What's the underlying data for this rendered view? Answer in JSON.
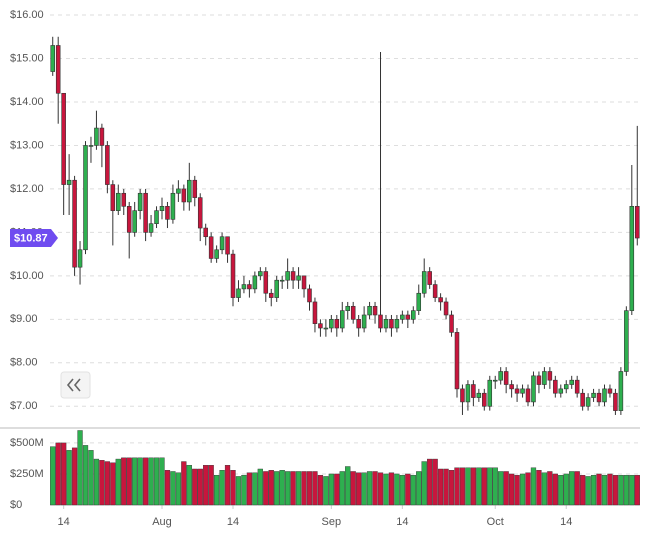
{
  "chart_data": {
    "type": "candlestick",
    "price_axis": {
      "ylim": [
        6.5,
        16.3
      ],
      "yticks": [
        {
          "value": 7,
          "label": "$7.00"
        },
        {
          "value": 8,
          "label": "$8.00"
        },
        {
          "value": 9,
          "label": "$9.00"
        },
        {
          "value": 10,
          "label": "$10.00"
        },
        {
          "value": 11,
          "label": "$11.00"
        },
        {
          "value": 12,
          "label": "$12.00"
        },
        {
          "value": 13,
          "label": "$13.00"
        },
        {
          "value": 14,
          "label": "$14.00"
        },
        {
          "value": 15,
          "label": "$15.00"
        },
        {
          "value": 16,
          "label": "$16.00"
        }
      ]
    },
    "volume_axis": {
      "ylim": [
        0,
        620
      ],
      "yticks": [
        {
          "value": 0,
          "label": "$0"
        },
        {
          "value": 250,
          "label": "$250M"
        },
        {
          "value": 500,
          "label": "$500M"
        }
      ]
    },
    "xlim": [
      -0.5,
      107.5
    ],
    "xticks": [
      {
        "value": 2,
        "label": "14"
      },
      {
        "value": 20,
        "label": "Aug"
      },
      {
        "value": 33,
        "label": "14"
      },
      {
        "value": 51,
        "label": "Sep"
      },
      {
        "value": 64,
        "label": "14"
      },
      {
        "value": 81,
        "label": "Oct"
      },
      {
        "value": 94,
        "label": "14"
      }
    ],
    "grid": true,
    "up_color": "#2eaf4f",
    "down_color": "#c8163d",
    "last_price": 10.87,
    "last_price_label": "$10.87",
    "last_price_color": "#6f4cf0",
    "open": [
      14.7,
      15.3,
      14.2,
      12.1,
      12.2,
      10.2,
      10.6,
      13.0,
      13.0,
      13.4,
      13.0,
      12.1,
      11.5,
      11.9,
      11.6,
      11.0,
      11.5,
      11.9,
      11.0,
      11.2,
      11.5,
      11.6,
      11.3,
      11.9,
      12.0,
      11.7,
      12.2,
      11.8,
      11.1,
      10.9,
      10.4,
      10.6,
      10.9,
      10.5,
      9.5,
      9.7,
      9.8,
      9.7,
      10.0,
      10.1,
      9.6,
      9.5,
      9.9,
      9.9,
      10.1,
      9.9,
      10.0,
      9.7,
      9.4,
      8.9,
      8.8,
      8.8,
      9.0,
      8.8,
      9.2,
      9.3,
      9.0,
      8.8,
      9.1,
      9.3,
      9.1,
      8.8,
      9.0,
      8.8,
      9.0,
      9.1,
      9.0,
      9.2,
      9.6,
      10.1,
      9.8,
      9.5,
      9.4,
      9.1,
      8.7,
      7.4,
      7.1,
      7.5,
      7.2,
      7.3,
      7.0,
      7.6,
      7.6,
      7.8,
      7.5,
      7.4,
      7.3,
      7.4,
      7.1,
      7.7,
      7.5,
      7.8,
      7.6,
      7.3,
      7.4,
      7.5,
      7.6,
      7.3,
      7.0,
      7.2,
      7.3,
      7.1,
      7.4,
      7.3,
      6.9,
      7.8,
      9.2,
      11.6
    ],
    "high": [
      15.5,
      15.5,
      14.2,
      12.8,
      12.3,
      10.8,
      13.1,
      13.2,
      13.8,
      13.5,
      13.1,
      12.2,
      12.1,
      12.0,
      11.7,
      11.7,
      12.0,
      12.0,
      11.4,
      11.6,
      11.8,
      11.7,
      12.1,
      12.2,
      12.1,
      12.6,
      12.3,
      11.9,
      11.2,
      11.0,
      10.7,
      11.0,
      10.9,
      10.6,
      9.9,
      10.0,
      9.9,
      10.1,
      10.2,
      10.2,
      9.7,
      10.0,
      10.0,
      10.4,
      10.2,
      10.2,
      10.0,
      9.8,
      9.5,
      9.0,
      9.0,
      9.1,
      9.1,
      9.4,
      9.4,
      9.4,
      9.1,
      9.3,
      9.4,
      9.4,
      15.15,
      9.1,
      9.1,
      9.1,
      9.2,
      9.2,
      9.3,
      9.8,
      10.4,
      10.2,
      9.9,
      9.6,
      9.5,
      9.2,
      8.8,
      7.5,
      7.6,
      7.6,
      7.4,
      7.4,
      7.7,
      7.7,
      7.9,
      7.9,
      7.6,
      7.5,
      7.5,
      7.5,
      7.8,
      7.8,
      7.9,
      7.9,
      7.7,
      7.5,
      7.6,
      7.7,
      7.7,
      7.4,
      7.3,
      7.4,
      7.4,
      7.5,
      7.5,
      7.4,
      7.9,
      9.3,
      12.55,
      13.45
    ],
    "low": [
      14.6,
      13.5,
      11.4,
      11.4,
      10.0,
      9.8,
      10.5,
      12.6,
      12.9,
      12.5,
      11.9,
      10.7,
      11.4,
      11.4,
      10.4,
      10.9,
      11.3,
      10.8,
      10.9,
      11.1,
      11.3,
      11.1,
      11.2,
      11.7,
      11.5,
      11.5,
      11.6,
      10.8,
      10.7,
      10.3,
      10.3,
      10.5,
      10.3,
      9.3,
      9.4,
      9.6,
      9.5,
      9.6,
      9.9,
      9.4,
      9.3,
      9.4,
      9.7,
      9.7,
      9.7,
      9.7,
      9.5,
      9.2,
      8.7,
      8.6,
      8.6,
      8.7,
      8.6,
      8.7,
      9.0,
      8.9,
      8.6,
      8.7,
      9.0,
      8.9,
      8.7,
      8.7,
      8.6,
      8.7,
      8.9,
      8.8,
      8.9,
      9.1,
      9.5,
      9.7,
      9.4,
      9.2,
      9.0,
      8.6,
      7.2,
      6.8,
      6.9,
      7.0,
      7.1,
      6.9,
      6.9,
      7.4,
      7.5,
      7.3,
      7.2,
      7.1,
      7.2,
      7.0,
      7.0,
      7.3,
      7.4,
      7.4,
      7.2,
      7.2,
      7.3,
      7.4,
      7.2,
      6.9,
      6.9,
      7.1,
      7.0,
      7.0,
      7.2,
      6.8,
      6.8,
      7.7,
      9.1,
      10.7
    ],
    "close": [
      15.3,
      14.2,
      12.1,
      12.2,
      10.2,
      10.6,
      13.0,
      13.0,
      13.4,
      13.0,
      12.1,
      11.5,
      11.9,
      11.6,
      11.0,
      11.5,
      11.9,
      11.0,
      11.2,
      11.5,
      11.6,
      11.3,
      11.9,
      12.0,
      11.7,
      12.2,
      11.8,
      11.1,
      10.9,
      10.4,
      10.6,
      10.9,
      10.5,
      9.5,
      9.7,
      9.8,
      9.7,
      10.0,
      10.1,
      9.6,
      9.5,
      9.9,
      9.9,
      10.1,
      9.9,
      10.0,
      9.7,
      9.4,
      8.9,
      8.8,
      8.8,
      9.0,
      8.8,
      9.2,
      9.3,
      9.0,
      8.8,
      9.1,
      9.3,
      9.1,
      8.8,
      9.0,
      8.8,
      9.0,
      9.1,
      9.0,
      9.2,
      9.6,
      10.1,
      9.8,
      9.5,
      9.4,
      9.1,
      8.7,
      7.4,
      7.1,
      7.5,
      7.2,
      7.3,
      7.0,
      7.6,
      7.6,
      7.8,
      7.5,
      7.4,
      7.3,
      7.4,
      7.1,
      7.7,
      7.5,
      7.8,
      7.6,
      7.3,
      7.4,
      7.5,
      7.6,
      7.3,
      7.0,
      7.2,
      7.3,
      7.1,
      7.4,
      7.3,
      6.9,
      7.8,
      9.2,
      11.6,
      10.87
    ],
    "volume": [
      470,
      500,
      500,
      440,
      460,
      600,
      480,
      440,
      370,
      360,
      350,
      340,
      370,
      380,
      380,
      380,
      380,
      380,
      380,
      380,
      380,
      280,
      270,
      260,
      350,
      320,
      290,
      290,
      320,
      320,
      240,
      280,
      320,
      280,
      230,
      240,
      260,
      260,
      290,
      270,
      280,
      270,
      280,
      270,
      270,
      270,
      270,
      270,
      270,
      240,
      230,
      250,
      250,
      270,
      310,
      270,
      260,
      260,
      270,
      270,
      260,
      250,
      260,
      250,
      240,
      250,
      240,
      270,
      350,
      370,
      370,
      290,
      290,
      280,
      300,
      300,
      300,
      300,
      300,
      300,
      300,
      300,
      270,
      270,
      250,
      240,
      250,
      260,
      300,
      280,
      260,
      270,
      250,
      240,
      250,
      270,
      270,
      240,
      230,
      240,
      250,
      240,
      250,
      240,
      240,
      240,
      240,
      240
    ]
  }
}
